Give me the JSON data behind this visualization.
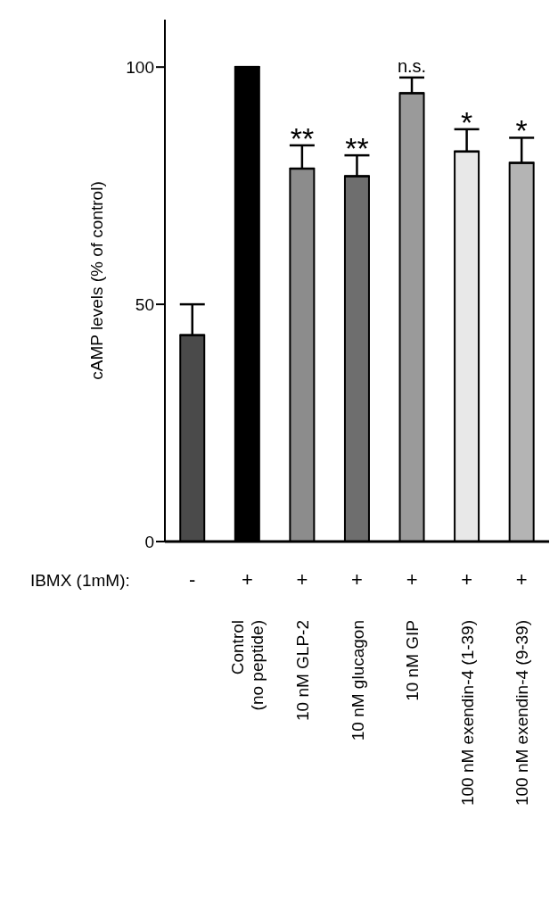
{
  "chart_data": {
    "type": "bar",
    "ylabel": "cAMP levels (% of control)",
    "categories": [
      null,
      "Control\n(no peptide)",
      "10 nM GLP-2",
      "10 nM glucagon",
      "10 nM GIP",
      "100  nM  exendin-4  (1-39)",
      "100  nM  exendin-4  (9-39)"
    ],
    "values": [
      43.5,
      100,
      78.6,
      77,
      94.5,
      82.2,
      79.8
    ],
    "errors": [
      [
        43.5,
        50
      ],
      null,
      [
        78.6,
        83.5
      ],
      [
        77,
        81.4
      ],
      [
        94.5,
        97.8
      ],
      [
        82.2,
        86.9
      ],
      [
        79.8,
        85.1
      ]
    ],
    "colors": [
      "#4a4a4a",
      "#000000",
      "#8c8c8c",
      "#6e6e6e",
      "#9a9a9a",
      "#e8e8e8",
      "#b4b4b4"
    ],
    "ylim": [
      0,
      110
    ],
    "yticks": [
      0,
      50,
      100
    ],
    "grid": false,
    "legend": false,
    "annotations": [
      "IBMX (1mM):",
      "-",
      "+",
      "+",
      "+",
      "+",
      "+",
      "+",
      "**",
      "**",
      "n.s.",
      "*",
      "*"
    ]
  }
}
